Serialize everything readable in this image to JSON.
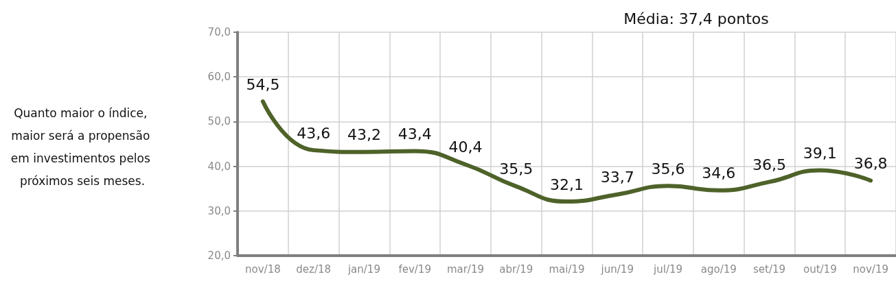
{
  "chart_data": {
    "type": "line",
    "categories": [
      "nov/18",
      "dez/18",
      "jan/19",
      "fev/19",
      "mar/19",
      "abr/19",
      "mai/19",
      "jun/19",
      "jul/19",
      "ago/19",
      "set/19",
      "out/19",
      "nov/19"
    ],
    "series": [
      {
        "color": "#4e6229",
        "values": [
          54.5,
          43.6,
          43.2,
          43.4,
          40.4,
          35.5,
          32.1,
          33.7,
          35.6,
          34.6,
          36.5,
          39.1,
          36.8
        ],
        "value_labels": [
          "54,5",
          "43,6",
          "43,2",
          "43,4",
          "40,4",
          "35,5",
          "32,1",
          "33,7",
          "35,6",
          "34,6",
          "36,5",
          "39,1",
          "36,8"
        ]
      }
    ],
    "ylim": [
      20,
      70
    ],
    "yticks": [
      {
        "value": 20,
        "label": "20,0"
      },
      {
        "value": 30,
        "label": "30,0"
      },
      {
        "value": 40,
        "label": "40,0"
      },
      {
        "value": 50,
        "label": "50,0"
      },
      {
        "value": 60,
        "label": "60,0"
      },
      {
        "value": 70,
        "label": "70,0"
      }
    ],
    "annotations": [
      "Quanto maior o índice, maior será a propensão em investimentos pelos próximos seis meses.",
      "Média: 37,4 pontos"
    ],
    "grid": true,
    "marker": "none",
    "line_style": "solid"
  }
}
